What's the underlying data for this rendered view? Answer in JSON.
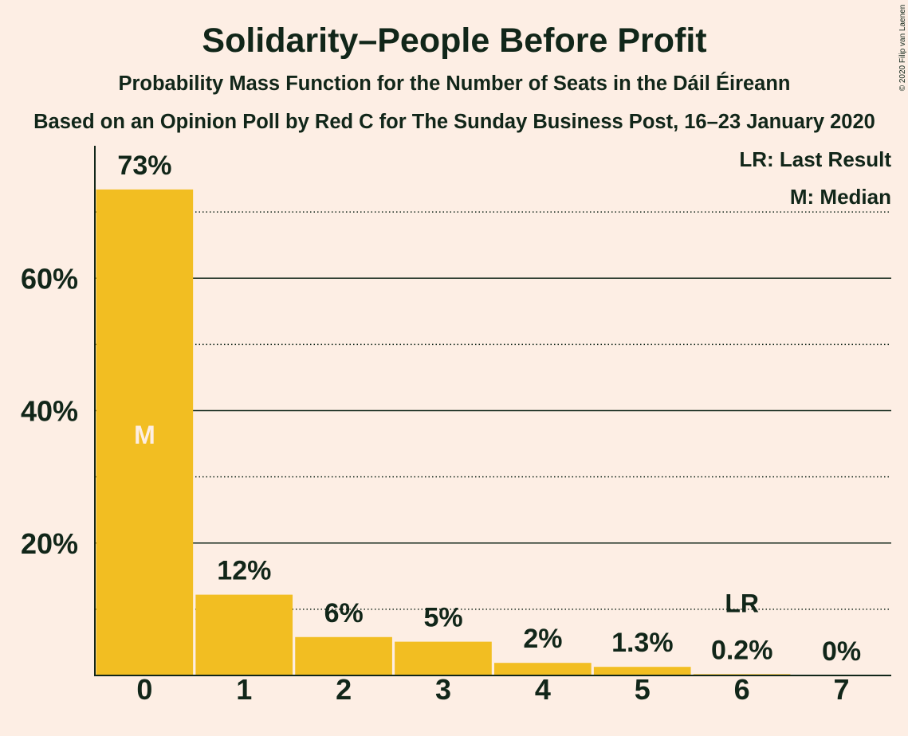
{
  "chart_data": {
    "type": "bar",
    "title": "Solidarity–People Before Profit",
    "subtitle": "Probability Mass Function for the Number of Seats in the Dáil Éireann",
    "source": "Based on an Opinion Poll by Red C for The Sunday Business Post, 16–23 January 2020",
    "xlabel": "",
    "ylabel": "",
    "categories": [
      "0",
      "1",
      "2",
      "3",
      "4",
      "5",
      "6",
      "7"
    ],
    "values": [
      73.4,
      12.2,
      5.8,
      5.1,
      1.9,
      1.3,
      0.2,
      0
    ],
    "value_labels": [
      "73%",
      "12%",
      "6%",
      "5%",
      "2%",
      "1.3%",
      "0.2%",
      "0%"
    ],
    "ylim": [
      0,
      80
    ],
    "yticks": [
      20,
      40,
      60
    ],
    "ytick_labels": [
      "20%",
      "40%",
      "60%"
    ],
    "minor_gridlines": [
      10,
      30,
      50,
      70
    ],
    "grid": true,
    "median": {
      "seats": 0,
      "marker": "M"
    },
    "last_result": {
      "seats": 6,
      "marker": "LR"
    },
    "legend": [
      "LR: Last Result",
      "M: Median"
    ]
  },
  "copyright": "© 2020 Filip van Laenen",
  "colors": {
    "background": "#FDEEE4",
    "bar": "#F2BE22",
    "text": "#112619",
    "median_marker": "#FDEEE4"
  }
}
